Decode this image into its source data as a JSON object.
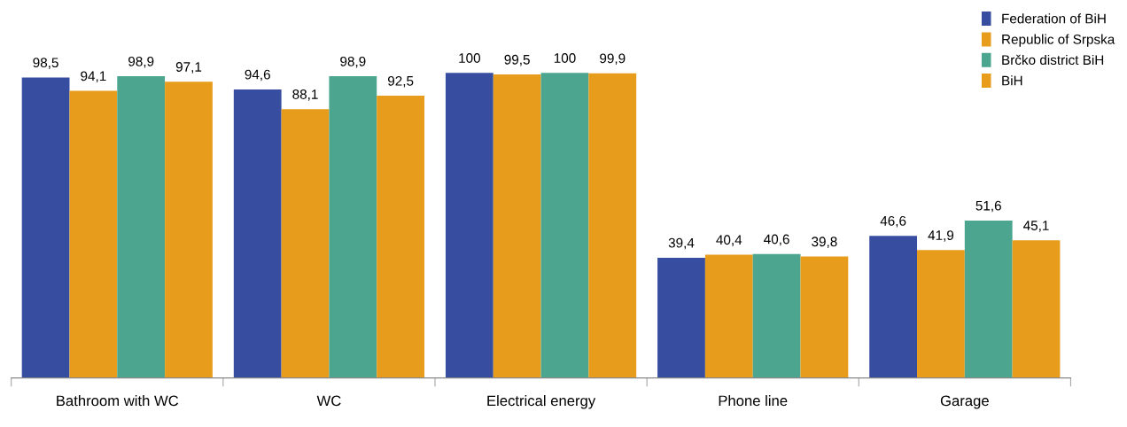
{
  "chart_data": {
    "type": "bar",
    "categories": [
      "Bathroom with WC",
      "WC",
      "Electrical energy",
      "Phone line",
      "Garage"
    ],
    "series": [
      {
        "name": "Federation of BiH",
        "color": "#374ea0",
        "values": [
          98.5,
          94.6,
          100,
          39.4,
          46.6
        ],
        "value_labels": [
          "98,5",
          "94,6",
          "100",
          "39,4",
          "46,6"
        ]
      },
      {
        "name": "Republic of Srpska",
        "color": "#e89c1c",
        "values": [
          94.1,
          88.1,
          99.5,
          40.4,
          41.9
        ],
        "value_labels": [
          "94,1",
          "88,1",
          "99,5",
          "40,4",
          "41,9"
        ]
      },
      {
        "name": "Brčko district BiH",
        "color": "#4ba58f",
        "values": [
          98.9,
          98.9,
          100,
          40.6,
          51.6
        ],
        "value_labels": [
          "98,9",
          "98,9",
          "100",
          "40,6",
          "51,6"
        ]
      },
      {
        "name": "BiH",
        "color": "#e89c1c",
        "values": [
          97.1,
          92.5,
          99.9,
          39.8,
          45.1
        ],
        "value_labels": [
          "97,1",
          "92,5",
          "99,9",
          "39,8",
          "45,1"
        ]
      }
    ],
    "legend": "top right",
    "grid": false
  }
}
